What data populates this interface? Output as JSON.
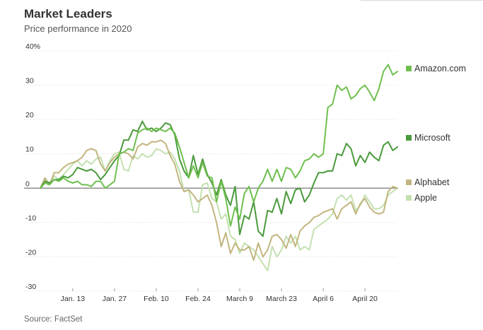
{
  "chart_data": {
    "type": "line",
    "title": "Market Leaders",
    "subtitle": "Price performance in 2020",
    "source": "Source: FactSet",
    "ylim": [
      -30,
      40
    ],
    "yticks": [
      {
        "value": 40,
        "label": "40%"
      },
      {
        "value": 30,
        "label": "30"
      },
      {
        "value": 20,
        "label": "20"
      },
      {
        "value": 10,
        "label": "10"
      },
      {
        "value": 0,
        "label": "0"
      },
      {
        "value": -10,
        "label": "-10"
      },
      {
        "value": -20,
        "label": "-20"
      },
      {
        "value": -30,
        "label": "-30"
      }
    ],
    "xticks": [
      {
        "index": 7,
        "label": "Jan. 13"
      },
      {
        "index": 16,
        "label": "Jan. 27"
      },
      {
        "index": 25,
        "label": "Feb. 10"
      },
      {
        "index": 34,
        "label": "Feb. 24"
      },
      {
        "index": 43,
        "label": "March 9"
      },
      {
        "index": 52,
        "label": "March 23"
      },
      {
        "index": 61,
        "label": "April 6"
      },
      {
        "index": 70,
        "label": "April 20"
      }
    ],
    "x_count": 78,
    "series": [
      {
        "name": "Apple",
        "color": "#c3e0b0",
        "values": [
          0,
          2.5,
          1.5,
          3.5,
          2.5,
          4,
          5.5,
          7,
          8,
          6.5,
          8,
          7,
          8.5,
          9,
          5,
          8,
          10,
          10.5,
          5.5,
          5,
          9.5,
          8.5,
          10,
          9,
          9.5,
          11.5,
          11,
          10,
          10.5,
          8.5,
          5,
          -1,
          -0.5,
          -7,
          -7,
          1,
          1.5,
          -3,
          -4,
          -9,
          -7.5,
          -14,
          -15,
          -19,
          -16,
          -17,
          -18,
          -20,
          -22,
          -24,
          -17,
          -20,
          -18,
          -14,
          -16,
          -14,
          -18,
          -17,
          -18,
          -12,
          -11,
          -10,
          -9,
          -7.5,
          -3,
          -2,
          -3.5,
          -2,
          -6.5,
          -5,
          -2,
          -4,
          -6,
          -6,
          -5,
          -2,
          -1,
          0
        ]
      },
      {
        "name": "Alphabet",
        "color": "#c2b57f",
        "values": [
          0,
          3,
          1,
          4.5,
          4.5,
          6,
          7,
          7.5,
          8,
          9,
          11,
          11.5,
          11,
          7,
          5,
          7.5,
          9,
          10,
          10.5,
          10,
          8.5,
          12,
          13,
          12.5,
          13.5,
          13.5,
          14,
          13,
          9.5,
          7,
          2,
          -1,
          -0.5,
          -2,
          -4,
          -3,
          -2,
          -5,
          -10,
          -17,
          -13,
          -19,
          -16,
          -18,
          -18,
          -17,
          -21,
          -16,
          -20,
          -18,
          -14,
          -13.5,
          -15,
          -17.5,
          -13.5,
          -17,
          -12.5,
          -11,
          -10,
          -8.5,
          -8,
          -7,
          -6.5,
          -6,
          -9,
          -6,
          -5,
          -4,
          -7.5,
          -4.5,
          -3,
          -5.5,
          -7,
          -7.5,
          -7,
          -1,
          0.5,
          0
        ]
      },
      {
        "name": "Microsoft",
        "color": "#4a9a3c",
        "values": [
          0,
          2,
          1.5,
          2.5,
          2.5,
          3.5,
          3,
          4,
          6,
          5.5,
          5,
          5.5,
          4.5,
          2.5,
          4,
          6,
          8,
          9.5,
          14,
          14,
          17,
          16.5,
          19.5,
          17,
          17.5,
          16.5,
          17.5,
          19,
          18.5,
          15.5,
          8.5,
          5,
          3,
          9.5,
          4,
          8.5,
          4,
          1.5,
          -2,
          2.5,
          -2,
          -5,
          0.5,
          -13.5,
          -8,
          -9,
          -4,
          -12.5,
          -14,
          -6.5,
          -7,
          -3,
          -7.5,
          -1,
          -4.5,
          -0.5,
          0,
          -4,
          -2,
          1.5,
          4.5,
          4.5,
          5,
          5,
          10,
          9.5,
          13,
          11.5,
          6.5,
          9.5,
          7.5,
          10.5,
          9,
          8,
          12.5,
          13.5,
          11,
          12
        ]
      },
      {
        "name": "Amazon.com",
        "color": "#6fbf4f",
        "values": [
          0,
          1.5,
          1,
          2.5,
          2,
          3,
          2,
          1.5,
          2,
          1,
          1,
          0.5,
          2,
          2,
          0,
          1,
          2,
          10,
          10.5,
          11.5,
          11,
          16,
          17,
          17.5,
          16.5,
          17.5,
          17,
          16.5,
          17.5,
          16,
          12,
          7.5,
          3,
          6.5,
          3,
          7.5,
          3.5,
          3,
          -4,
          2,
          -3,
          -11,
          -5.5,
          -9,
          -1.5,
          0.5,
          -4,
          0,
          2,
          5.5,
          2,
          5.5,
          2,
          6,
          5.5,
          3,
          5,
          8,
          8.5,
          10,
          9,
          10,
          23.5,
          24.5,
          30,
          28.5,
          29.5,
          26,
          27,
          29,
          30,
          28,
          25.5,
          29,
          34,
          36,
          33,
          34
        ]
      }
    ]
  }
}
